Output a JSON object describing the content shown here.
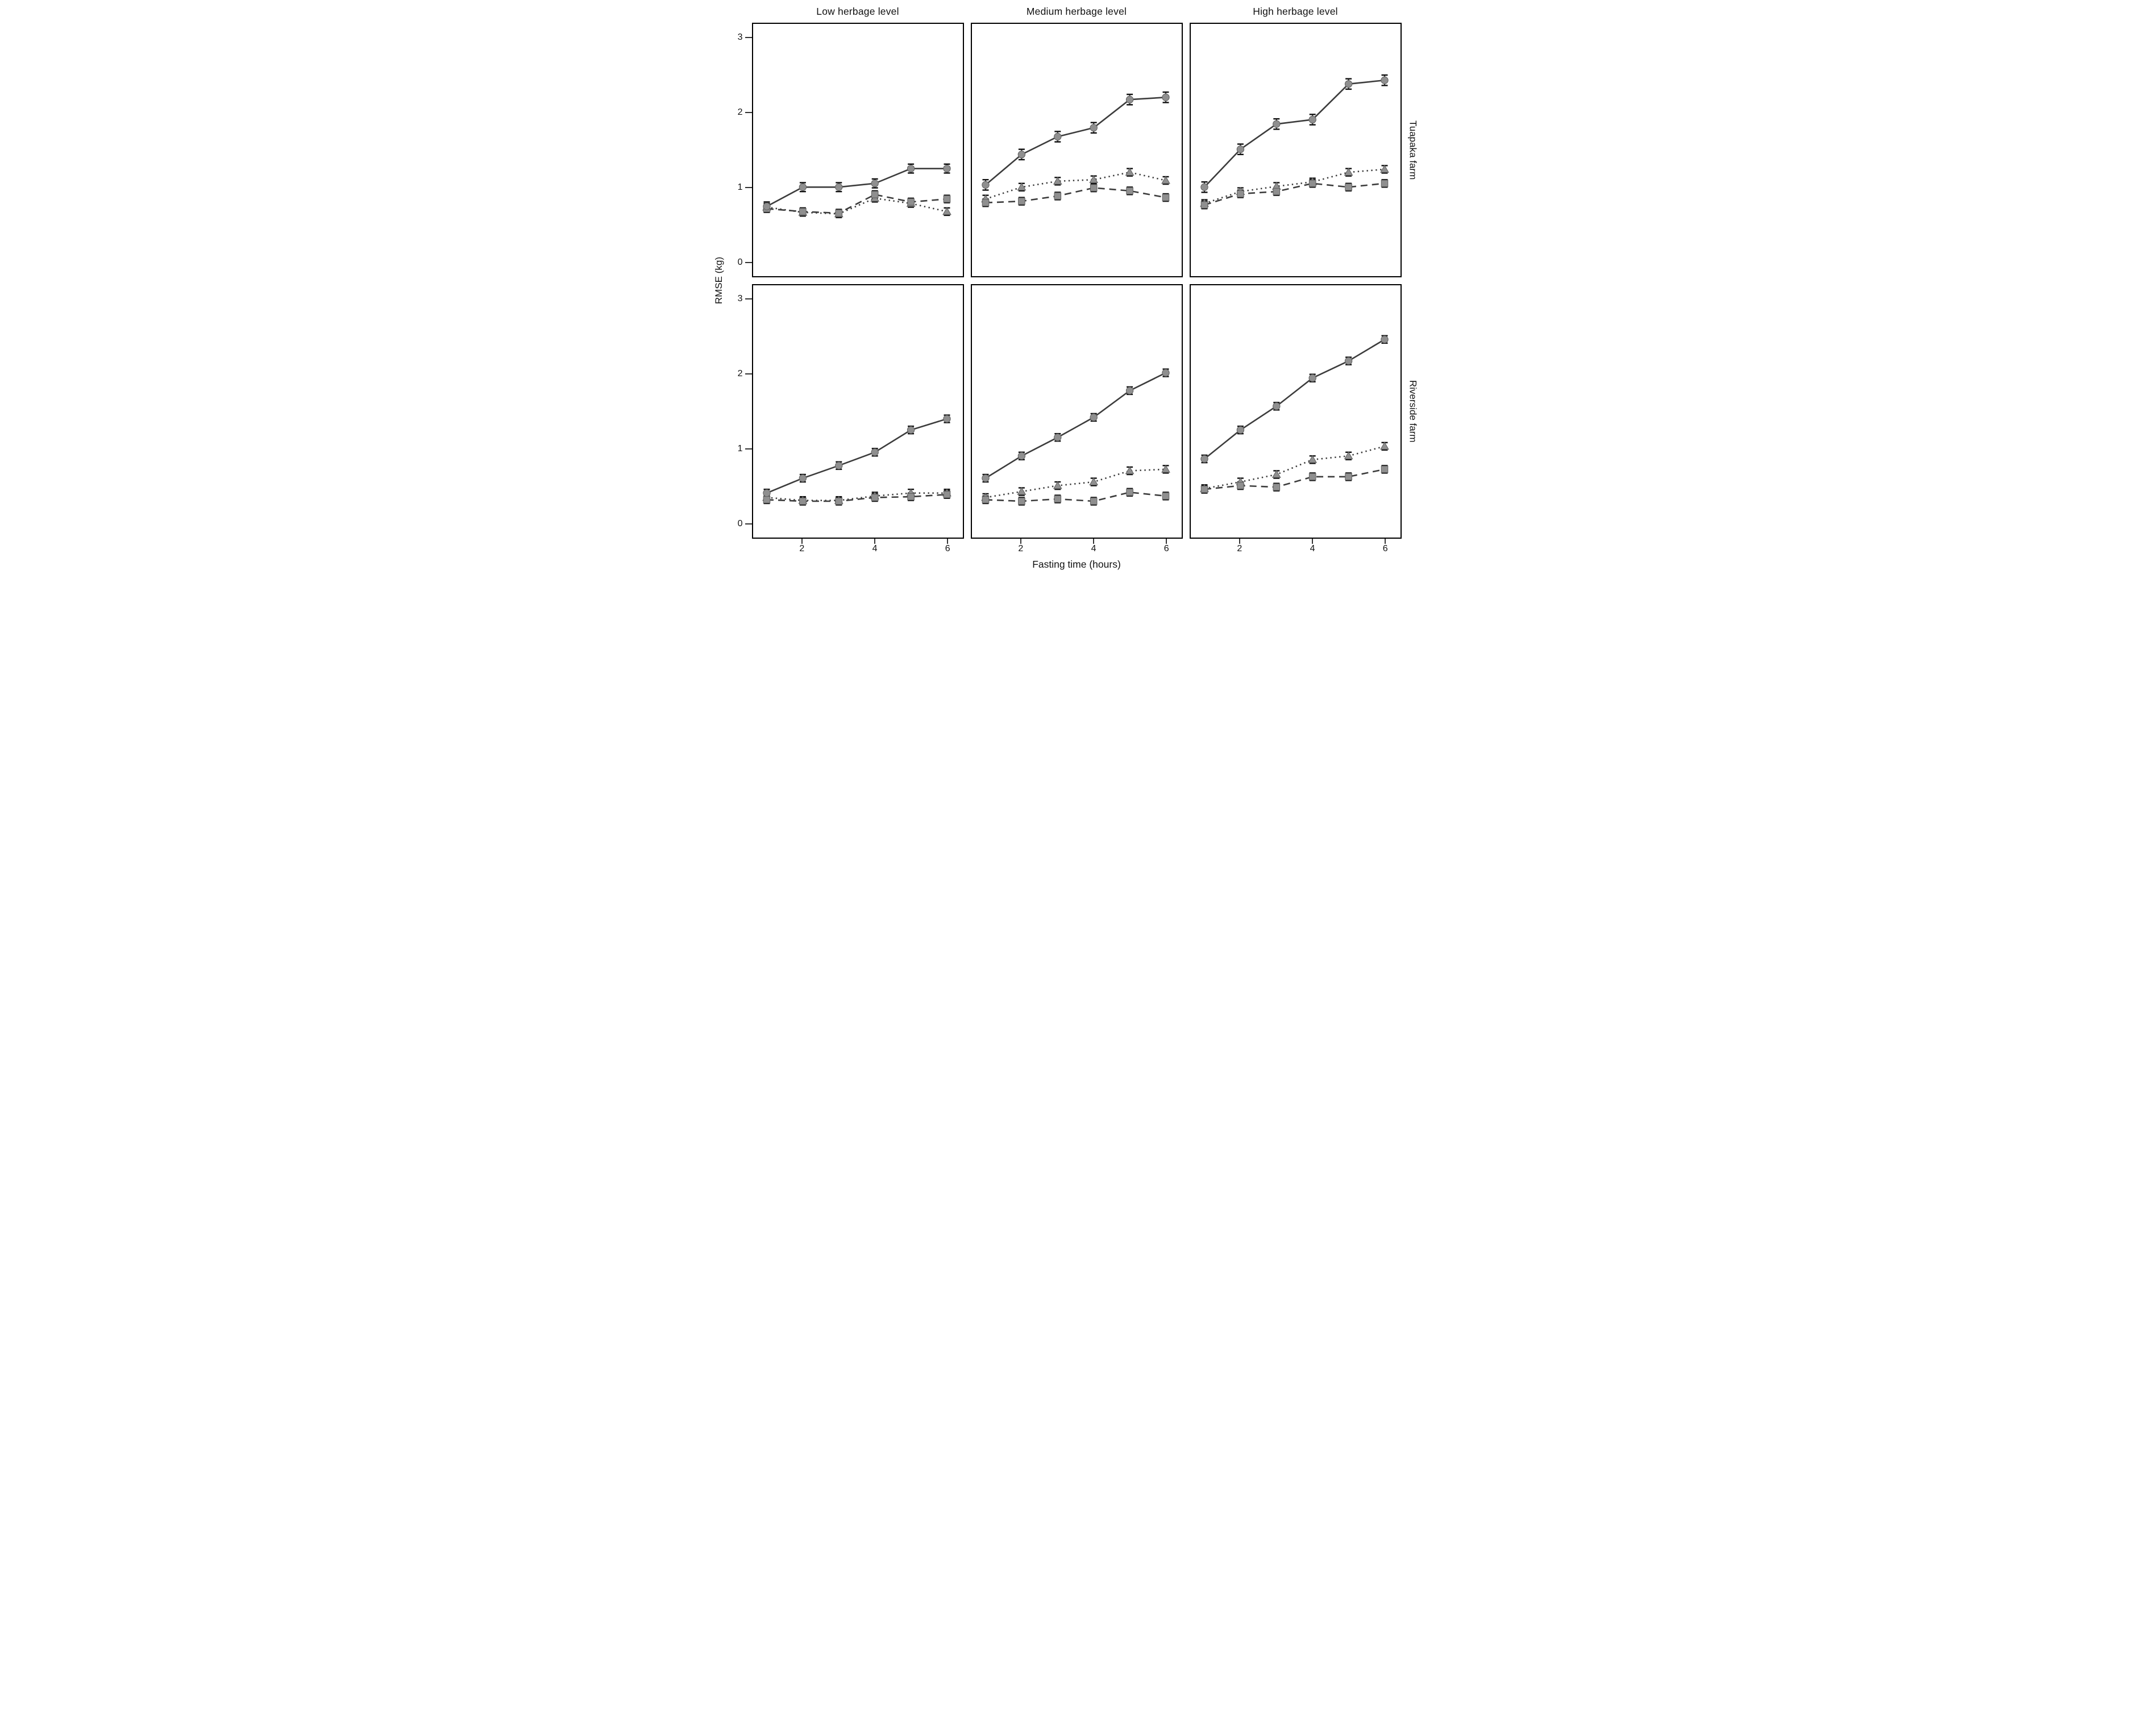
{
  "figure": {
    "y_axis_title": "RMSE (kg)",
    "x_axis_title": "Fasting time (hours)",
    "column_headers": [
      "Low herbage level",
      "Medium herbage level",
      "High herbage level"
    ],
    "row_labels": [
      "Tuapaka farm",
      "Riverside farm"
    ]
  },
  "colors": {
    "background": "#ffffff",
    "panel_border": "#000000",
    "line": "#3c3c3c",
    "marker_fill": "#8f8f8f",
    "marker_edge": "#5f5f5f",
    "error_cap": "#0f0f0f",
    "text": "#111111",
    "tick": "#333333"
  },
  "axes": {
    "x": [
      1,
      2,
      3,
      4,
      5,
      6
    ],
    "x_ticks": [
      2,
      4,
      6
    ],
    "y_ticks": [
      0,
      1,
      2,
      3
    ],
    "xlim": [
      0.45,
      6.55
    ],
    "ylim": [
      -0.2,
      3.2
    ],
    "grid": "off",
    "legend": "none"
  },
  "chart_data": [
    {
      "type": "line",
      "panel": "tuapaka-low",
      "row_label": "Tuapaka farm",
      "column_header": "Low herbage level",
      "x": [
        1,
        2,
        3,
        4,
        5,
        6
      ],
      "series": [
        {
          "name": "dotted-triangle",
          "line": "dotted",
          "marker": "triangle",
          "values": [
            0.73,
            0.66,
            0.64,
            0.85,
            0.78,
            0.67
          ],
          "error": 0.05
        },
        {
          "name": "dashed-square",
          "line": "dashed",
          "marker": "square",
          "values": [
            0.71,
            0.67,
            0.65,
            0.9,
            0.8,
            0.84
          ],
          "error": 0.05
        },
        {
          "name": "solid-circle",
          "line": "solid",
          "marker": "circle",
          "values": [
            0.74,
            1.0,
            1.0,
            1.05,
            1.25,
            1.25
          ],
          "error": 0.06
        }
      ]
    },
    {
      "type": "line",
      "panel": "tuapaka-medium",
      "row_label": "Tuapaka farm",
      "column_header": "Medium herbage level",
      "x": [
        1,
        2,
        3,
        4,
        5,
        6
      ],
      "series": [
        {
          "name": "dotted-triangle",
          "line": "dotted",
          "marker": "triangle",
          "values": [
            0.84,
            1.0,
            1.08,
            1.1,
            1.2,
            1.09
          ],
          "error": 0.05
        },
        {
          "name": "dashed-square",
          "line": "dashed",
          "marker": "square",
          "values": [
            0.79,
            0.81,
            0.88,
            0.99,
            0.95,
            0.86
          ],
          "error": 0.05
        },
        {
          "name": "solid-circle",
          "line": "solid",
          "marker": "circle",
          "values": [
            1.03,
            1.44,
            1.68,
            1.8,
            2.18,
            2.21
          ],
          "error": 0.07
        }
      ]
    },
    {
      "type": "line",
      "panel": "tuapaka-high",
      "row_label": "Tuapaka farm",
      "column_header": "High herbage level",
      "x": [
        1,
        2,
        3,
        4,
        5,
        6
      ],
      "series": [
        {
          "name": "dotted-triangle",
          "line": "dotted",
          "marker": "triangle",
          "values": [
            0.78,
            0.94,
            1.01,
            1.07,
            1.2,
            1.24
          ],
          "error": 0.05
        },
        {
          "name": "dashed-square",
          "line": "dashed",
          "marker": "square",
          "values": [
            0.76,
            0.91,
            0.94,
            1.05,
            1.0,
            1.05
          ],
          "error": 0.05
        },
        {
          "name": "solid-circle",
          "line": "solid",
          "marker": "circle",
          "values": [
            1.0,
            1.51,
            1.85,
            1.91,
            2.39,
            2.44
          ],
          "error": 0.07
        }
      ]
    },
    {
      "type": "line",
      "panel": "riverside-low",
      "row_label": "Riverside farm",
      "column_header": "Low herbage level",
      "x": [
        1,
        2,
        3,
        4,
        5,
        6
      ],
      "series": [
        {
          "name": "dotted-triangle",
          "line": "dotted",
          "marker": "triangle",
          "values": [
            0.34,
            0.3,
            0.3,
            0.36,
            0.4,
            0.4
          ],
          "error": 0.05
        },
        {
          "name": "dashed-square",
          "line": "dashed",
          "marker": "square",
          "values": [
            0.31,
            0.29,
            0.29,
            0.34,
            0.35,
            0.38
          ],
          "error": 0.05
        },
        {
          "name": "solid-circle",
          "line": "solid",
          "marker": "circle",
          "values": [
            0.4,
            0.6,
            0.77,
            0.95,
            1.25,
            1.4
          ],
          "error": 0.05
        }
      ]
    },
    {
      "type": "line",
      "panel": "riverside-medium",
      "row_label": "Riverside farm",
      "column_header": "Medium herbage level",
      "x": [
        1,
        2,
        3,
        4,
        5,
        6
      ],
      "series": [
        {
          "name": "dotted-triangle",
          "line": "dotted",
          "marker": "triangle",
          "values": [
            0.34,
            0.42,
            0.5,
            0.55,
            0.7,
            0.72
          ],
          "error": 0.05
        },
        {
          "name": "dashed-square",
          "line": "dashed",
          "marker": "square",
          "values": [
            0.31,
            0.29,
            0.32,
            0.29,
            0.41,
            0.36
          ],
          "error": 0.05
        },
        {
          "name": "solid-circle",
          "line": "solid",
          "marker": "circle",
          "values": [
            0.6,
            0.9,
            1.15,
            1.42,
            1.78,
            2.02
          ],
          "error": 0.05
        }
      ]
    },
    {
      "type": "line",
      "panel": "riverside-high",
      "row_label": "Riverside farm",
      "column_header": "High herbage level",
      "x": [
        1,
        2,
        3,
        4,
        5,
        6
      ],
      "series": [
        {
          "name": "dotted-triangle",
          "line": "dotted",
          "marker": "triangle",
          "values": [
            0.46,
            0.55,
            0.65,
            0.85,
            0.9,
            1.03
          ],
          "error": 0.05
        },
        {
          "name": "dashed-square",
          "line": "dashed",
          "marker": "square",
          "values": [
            0.45,
            0.5,
            0.48,
            0.62,
            0.62,
            0.72
          ],
          "error": 0.05
        },
        {
          "name": "solid-circle",
          "line": "solid",
          "marker": "circle",
          "values": [
            0.86,
            1.25,
            1.57,
            1.95,
            2.18,
            2.47
          ],
          "error": 0.05
        }
      ]
    }
  ]
}
